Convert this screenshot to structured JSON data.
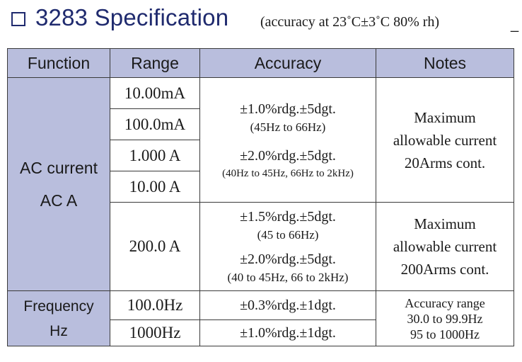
{
  "title": "3283 Specification",
  "subtitle": "(accuracy  at 23˚C±3˚C  80% rh)",
  "trailing_mark": "_",
  "headers": {
    "function": "Function",
    "range": "Range",
    "accuracy": "Accuracy",
    "notes": "Notes"
  },
  "ac": {
    "function_line1": "AC current",
    "function_line2": "AC A",
    "ranges": [
      "10.00mA",
      "100.0mA",
      "1.000  A",
      "10.00  A",
      "200.0  A"
    ],
    "group1_accuracy": {
      "a1": "±1.0%rdg.±5dgt.",
      "a1_freq": "(45Hz to 66Hz)",
      "a2": "±2.0%rdg.±5dgt.",
      "a2_freq": "(40Hz to 45Hz, 66Hz to 2kHz)"
    },
    "group1_notes": [
      "Maximum",
      "allowable current",
      "20Arms cont."
    ],
    "group2_accuracy": {
      "a1": "±1.5%rdg.±5dgt.",
      "a1_freq": "(45 to 66Hz)",
      "a2": "±2.0%rdg.±5dgt.",
      "a2_freq": "(40 to 45Hz, 66 to 2kHz)"
    },
    "group2_notes": [
      "Maximum",
      "allowable current",
      "200Arms cont."
    ]
  },
  "freq": {
    "function_line1": "Frequency",
    "function_line2": "Hz",
    "ranges": [
      "100.0Hz",
      "1000Hz"
    ],
    "accuracy": [
      "±0.3%rdg.±1dgt.",
      "±1.0%rdg.±1dgt."
    ],
    "notes": [
      "Accuracy range",
      "30.0 to 99.9Hz",
      "95 to 1000Hz"
    ]
  }
}
